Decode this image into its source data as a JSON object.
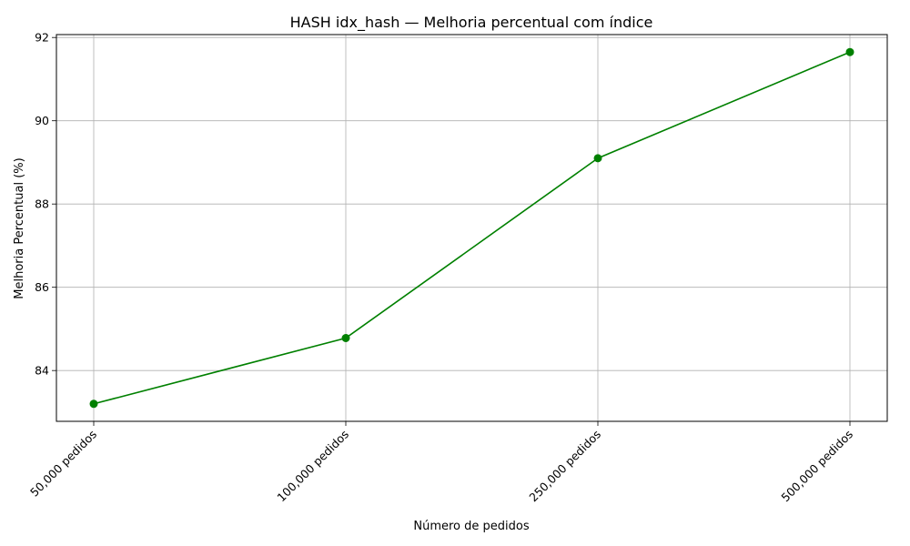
{
  "chart_data": {
    "type": "line",
    "title": "HASH idx_hash — Melhoria percentual com índice",
    "xlabel": "Número de pedidos",
    "ylabel": "Melhoria Percentual (%)",
    "categories": [
      "50,000 pedidos",
      "100,000 pedidos",
      "250,000 pedidos",
      "500,000 pedidos"
    ],
    "series": [
      {
        "values": [
          83.2,
          84.78,
          89.1,
          91.65
        ],
        "color": "#008000",
        "marker": "circle"
      }
    ],
    "ylim": [
      82.78,
      92.07
    ],
    "yticks": [
      84,
      86,
      88,
      90,
      92
    ],
    "grid": true,
    "legend": "none"
  }
}
